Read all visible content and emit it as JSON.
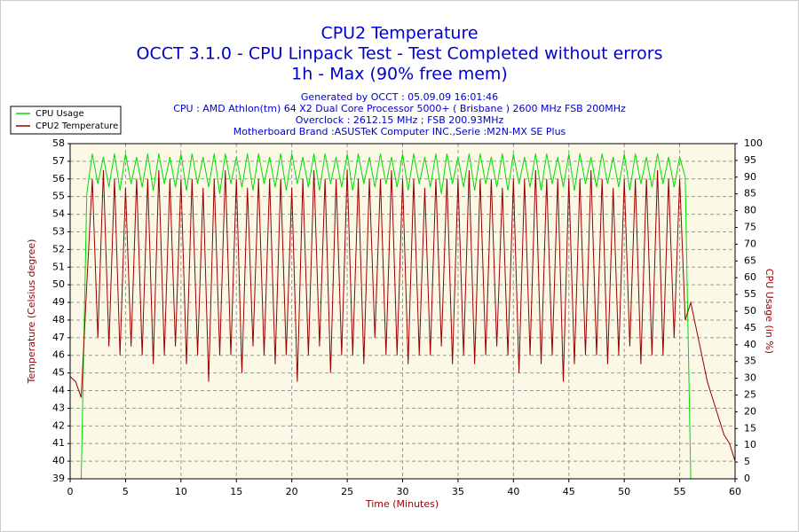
{
  "chart_data": {
    "type": "line",
    "title": "CPU2 Temperature",
    "subtitle": [
      "OCCT 3.1.0 - CPU Linpack Test - Test Completed without errors",
      "1h - Max (90% free mem)"
    ],
    "info": [
      "Generated by OCCT : 05.09.09 16:01:46",
      "CPU : AMD Athlon(tm) 64 X2 Dual Core Processor 5000+ ( Brisbane ) 2600 MHz FSB 200MHz",
      "Overclock : 2612.15 MHz ; FSB 200.93MHz",
      "Motherboard Brand :ASUSTeK Computer INC.,Serie :M2N-MX SE Plus"
    ],
    "x_label": "Time (Minutes)",
    "y_label": "Temperature (Celsius degree)",
    "y2_label": "CPU Usage (in %)",
    "x": [
      0,
      0.5,
      1,
      1.5,
      2,
      2.5,
      3,
      3.5,
      4,
      4.5,
      5,
      5.5,
      6,
      6.5,
      7,
      7.5,
      8,
      8.5,
      9,
      9.5,
      10,
      10.5,
      11,
      11.5,
      12,
      12.5,
      13,
      13.5,
      14,
      14.5,
      15,
      15.5,
      16,
      16.5,
      17,
      17.5,
      18,
      18.5,
      19,
      19.5,
      20,
      20.5,
      21,
      21.5,
      22,
      22.5,
      23,
      23.5,
      24,
      24.5,
      25,
      25.5,
      26,
      26.5,
      27,
      27.5,
      28,
      28.5,
      29,
      29.5,
      30,
      30.5,
      31,
      31.5,
      32,
      32.5,
      33,
      33.5,
      34,
      34.5,
      35,
      35.5,
      36,
      36.5,
      37,
      37.5,
      38,
      38.5,
      39,
      39.5,
      40,
      40.5,
      41,
      41.5,
      42,
      42.5,
      43,
      43.5,
      44,
      44.5,
      45,
      45.5,
      46,
      46.5,
      47,
      47.5,
      48,
      48.5,
      49,
      49.5,
      50,
      50.5,
      51,
      51.5,
      52,
      52.5,
      53,
      53.5,
      54,
      54.5,
      55,
      55.5,
      56,
      56.5,
      57,
      57.5,
      58,
      58.5,
      59,
      59.5,
      60
    ],
    "series": [
      {
        "name": "CPU Usage",
        "color": "#00dd00",
        "axis": "y2",
        "values": [
          null,
          null,
          0,
          85,
          97,
          88,
          96,
          87,
          97,
          86,
          97,
          88,
          96,
          87,
          97,
          86,
          97,
          88,
          96,
          87,
          97,
          86,
          97,
          88,
          96,
          87,
          97,
          85,
          97,
          88,
          96,
          87,
          97,
          86,
          97,
          88,
          96,
          87,
          97,
          86,
          97,
          88,
          96,
          87,
          97,
          86,
          97,
          88,
          96,
          87,
          97,
          86,
          97,
          88,
          96,
          87,
          97,
          88,
          96,
          87,
          97,
          86,
          97,
          88,
          96,
          87,
          97,
          85,
          97,
          88,
          96,
          87,
          97,
          86,
          97,
          88,
          96,
          87,
          97,
          86,
          97,
          88,
          96,
          87,
          97,
          86,
          97,
          88,
          96,
          87,
          97,
          86,
          97,
          88,
          96,
          87,
          97,
          88,
          96,
          87,
          97,
          86,
          97,
          88,
          96,
          87,
          97,
          88,
          96,
          87,
          96,
          90,
          0,
          null,
          null,
          null,
          null,
          null,
          null,
          null,
          null
        ]
      },
      {
        "name": "CPU2 Temperature",
        "color": "#990000",
        "values": [
          44.8,
          44.5,
          43.6,
          50,
          56,
          47,
          56.5,
          46.5,
          56,
          46,
          55.5,
          46.5,
          56,
          46,
          56,
          45.5,
          56.5,
          46,
          56,
          46.5,
          56,
          45.5,
          56,
          46,
          55.5,
          44.5,
          56,
          46,
          56.5,
          46,
          56,
          45,
          55.5,
          46.5,
          56,
          46,
          56,
          45.5,
          56,
          46,
          55.5,
          44.5,
          56,
          46,
          56.5,
          46.5,
          56,
          45,
          56,
          46,
          56.5,
          46,
          56,
          45.5,
          56,
          47,
          56,
          46,
          56.5,
          46,
          56,
          45.5,
          56,
          46,
          55.5,
          46,
          56,
          46.5,
          56,
          45.5,
          56,
          46,
          56.5,
          45.5,
          56,
          46,
          56,
          46.5,
          55.5,
          46,
          56,
          45,
          56,
          46,
          56.5,
          45.5,
          56,
          46,
          56,
          44.5,
          56,
          45.5,
          56,
          46,
          56.5,
          46,
          56,
          45.5,
          55.5,
          46,
          56,
          46.5,
          56,
          45.5,
          56,
          46,
          56.5,
          46,
          56,
          47,
          56,
          48,
          49,
          47.5,
          46,
          44.5,
          43.5,
          42.5,
          41.5,
          41,
          40
        ]
      }
    ],
    "xlim": [
      0,
      60
    ],
    "xticks": [
      0,
      5,
      10,
      15,
      20,
      25,
      30,
      35,
      40,
      45,
      50,
      55,
      60
    ],
    "ylim": [
      39,
      58
    ],
    "yticks": [
      39,
      40,
      41,
      42,
      43,
      44,
      45,
      46,
      47,
      48,
      49,
      50,
      51,
      52,
      53,
      54,
      55,
      56,
      57,
      58
    ],
    "y2lim": [
      0,
      100
    ],
    "y2ticks": [
      0,
      5,
      10,
      15,
      20,
      25,
      30,
      35,
      40,
      45,
      50,
      55,
      60,
      65,
      70,
      75,
      80,
      85,
      90,
      95,
      100
    ],
    "grid": true,
    "legend": "top-left"
  }
}
